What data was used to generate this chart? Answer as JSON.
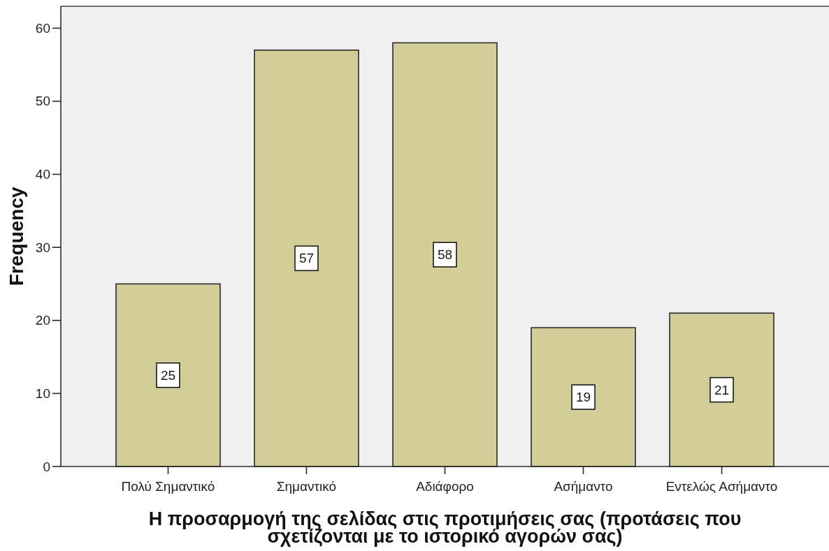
{
  "chart_data": {
    "type": "bar",
    "xlabel": "Η προσαρμογή της σελίδας στις προτιμήσεις σας (προτάσεις που σχετίζονται με το ιστορικό αγορών σας)",
    "ylabel": "Frequency",
    "categories": [
      "Πολύ Σημαντικό",
      "Σημαντικό",
      "Αδιάφορο",
      "Ασήμαντο",
      "Εντελώς Ασήμαντο"
    ],
    "values": [
      25,
      57,
      58,
      19,
      21
    ],
    "color": "#d3ce97",
    "ylim": [
      0,
      63
    ],
    "yticks": [
      0,
      10,
      20,
      30,
      40,
      50,
      60
    ],
    "grid": false,
    "data_labels": true
  }
}
